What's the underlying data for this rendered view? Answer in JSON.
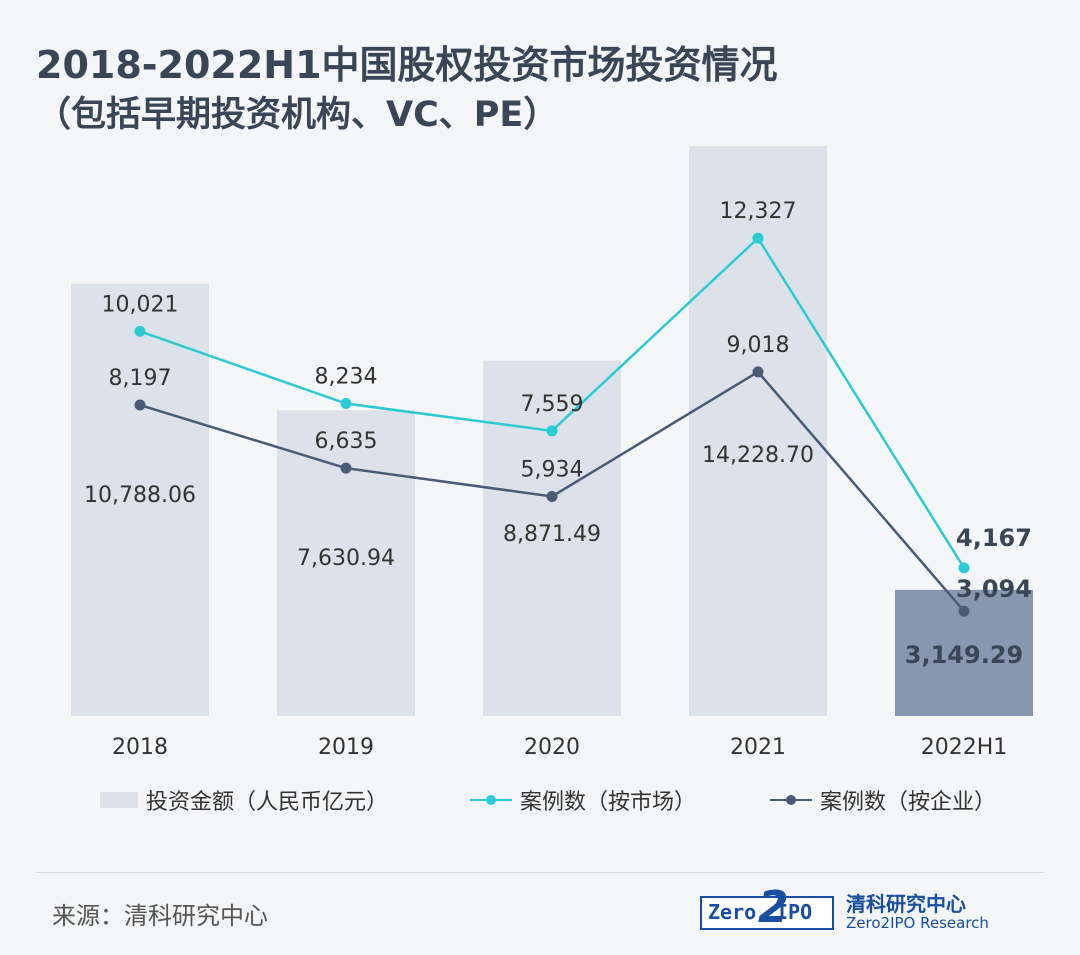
{
  "title": "2018-2022H1中国股权投资市场投资情况",
  "subtitle": "（包括早期投资机构、VC、PE）",
  "chart_data": {
    "type": "bar",
    "categories": [
      "2018",
      "2019",
      "2020",
      "2021",
      "2022H1"
    ],
    "series": [
      {
        "name": "投资金额（人民币亿元）",
        "type": "bar",
        "values": [
          10788.06,
          7630.94,
          8871.49,
          14228.7,
          3149.29
        ],
        "labels": [
          "10,788.06",
          "7,630.94",
          "8,871.49",
          "14,228.70",
          "3,149.29"
        ]
      },
      {
        "name": "案例数（按市场）",
        "type": "line",
        "values": [
          10021,
          8234,
          7559,
          12327,
          4167
        ],
        "labels": [
          "10,021",
          "8,234",
          "7,559",
          "12,327",
          "4,167"
        ]
      },
      {
        "name": "案例数（按企业）",
        "type": "line",
        "values": [
          8197,
          6635,
          5934,
          9018,
          3094
        ],
        "labels": [
          "8,197",
          "6,635",
          "5,934",
          "9,018",
          "3,094"
        ]
      }
    ],
    "highlight_category": "2022H1"
  },
  "colors": {
    "bar": "#dde2ea",
    "bar_highlight": "#8797b0",
    "line_market": "#2ccbd3",
    "line_company": "#4a5b76",
    "text": "#333333"
  },
  "source": "来源：清科研究中心",
  "logo": {
    "left": "Zero",
    "digit": "2",
    "right": "IPO",
    "name_cn": "清科研究中心",
    "name_en": "Zero2IPO Research"
  }
}
